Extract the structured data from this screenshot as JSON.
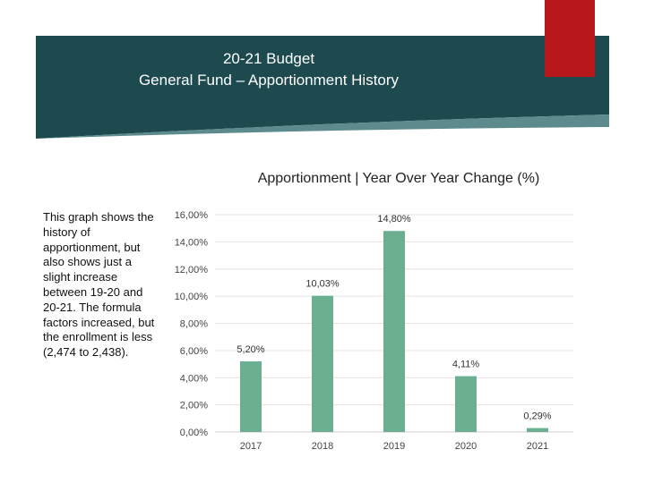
{
  "header": {
    "title_line1": "20-21 Budget",
    "title_line2": "General Fund – Apportionment History"
  },
  "sidebar_text": "This graph shows the history of apportionment, but also shows just a slight increase between 19-20 and 20-21. The formula factors increased, but the enrollment is less (2,474 to 2,438).",
  "colors": {
    "banner": "#1c4a4f",
    "banner_edge": "#5d8a8c",
    "accent_red": "#b5171b",
    "bar": "#6ab090"
  },
  "chart_data": {
    "type": "bar",
    "title": "Apportionment | Year Over Year Change (%)",
    "categories": [
      "2017",
      "2018",
      "2019",
      "2020",
      "2021"
    ],
    "values": [
      5.2,
      10.03,
      14.8,
      4.11,
      0.29
    ],
    "data_labels": [
      "5,20%",
      "10,03%",
      "14,80%",
      "4,11%",
      "0,29%"
    ],
    "ylim": [
      0,
      16
    ],
    "yticks": [
      0,
      2,
      4,
      6,
      8,
      10,
      12,
      14,
      16
    ],
    "ytick_labels": [
      "0,00%",
      "2,00%",
      "4,00%",
      "6,00%",
      "8,00%",
      "10,00%",
      "12,00%",
      "14,00%",
      "16,00%"
    ],
    "grid": true,
    "legend": "none"
  }
}
